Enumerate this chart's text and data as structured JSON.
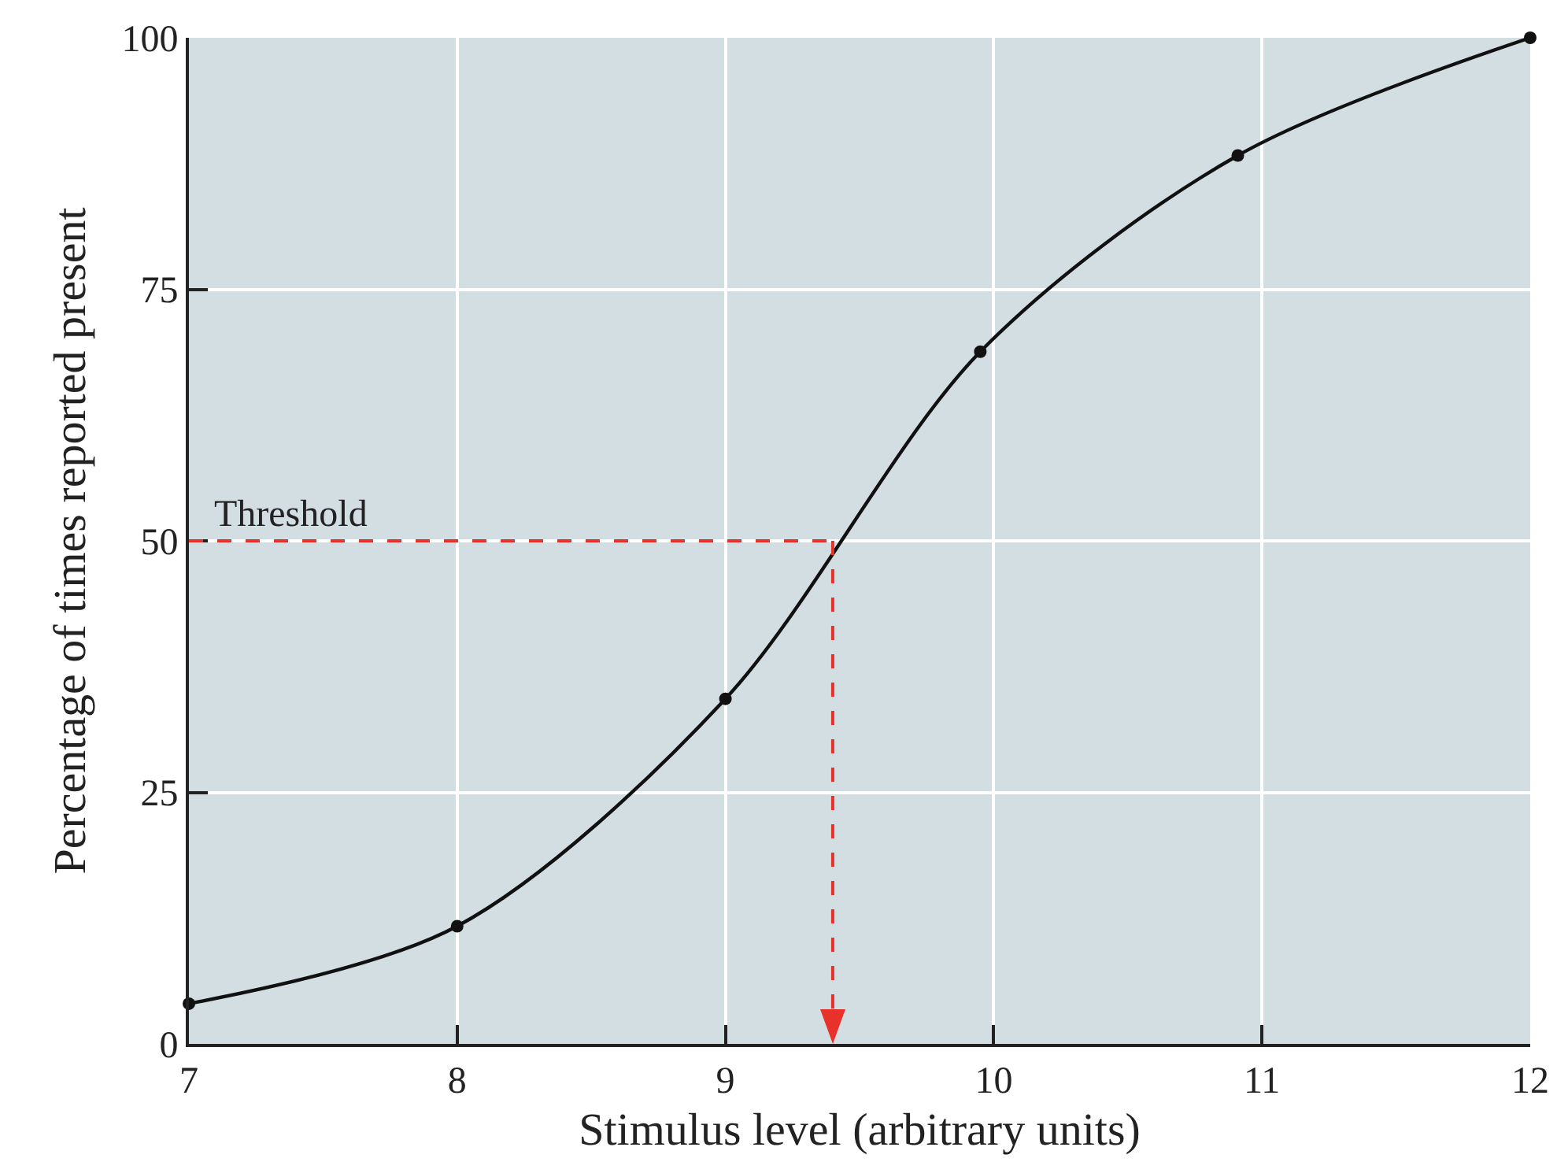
{
  "chart_data": {
    "type": "line",
    "xlabel": "Stimulus level (arbitrary units)",
    "ylabel": "Percentage of times reported present",
    "x": [
      7,
      8,
      9,
      9.95,
      10.91,
      12
    ],
    "series": [
      {
        "color": "#111111",
        "values": [
          4,
          11.7,
          34.3,
          68.8,
          88.3,
          100
        ]
      }
    ],
    "xlim": [
      7,
      12
    ],
    "xticks": [
      7,
      8,
      9,
      10,
      11,
      12
    ],
    "ylim": [
      0,
      100
    ],
    "yticks": [
      0,
      25,
      50,
      75,
      100
    ],
    "grid": true,
    "marker": "circle",
    "line_style": "solid",
    "ref_lines": [
      {
        "axis": "y",
        "value": 50,
        "label": "Threshold",
        "color": "#e8312a",
        "line_style": "dashed"
      },
      {
        "axis": "x",
        "value": 9.4,
        "color": "#e8312a",
        "line_style": "dashed"
      }
    ]
  }
}
